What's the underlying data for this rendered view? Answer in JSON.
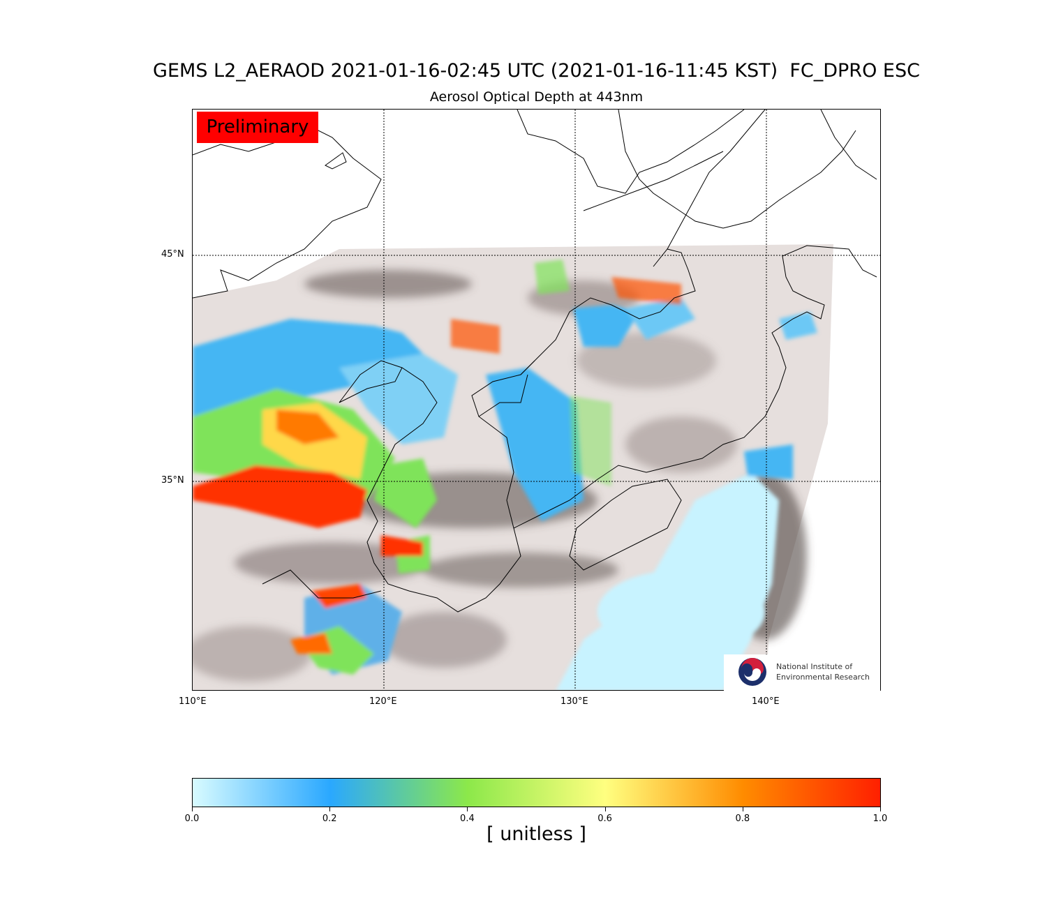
{
  "title": "GEMS L2_AERAOD 2021-01-16-02:45 UTC (2021-01-16-11:45 KST)  FC_DPRO ESC",
  "subtitle": "Aerosol Optical Depth at 443nm",
  "badge": "Preliminary",
  "map": {
    "lon_range": [
      110,
      146
    ],
    "lat_range": [
      25.7,
      51.4
    ],
    "lat_labels": [
      "45°N",
      "35°N"
    ],
    "lon_labels": [
      "110°E",
      "120°E",
      "130°E",
      "140°E"
    ],
    "gridlines": "dotted",
    "colors": {
      "clouds": "#e8e2e0",
      "cloud_shadow": "#5a4e4c",
      "low_aod": "#c8f3ff",
      "mid_aod": "#30b0ff",
      "green": "#7fe35a",
      "yellow": "#ffe070",
      "high_aod": "#ff2a00"
    }
  },
  "logo": {
    "line1": "National Institute of",
    "line2": "Environmental Research"
  },
  "colorbar": {
    "ticks": [
      "0.0",
      "0.2",
      "0.4",
      "0.6",
      "0.8",
      "1.0"
    ],
    "range": [
      0,
      1
    ],
    "colors": [
      "#d8fbff",
      "#2aa8ff",
      "#8ce84a",
      "#ffff80",
      "#ff8c00",
      "#ff2000"
    ],
    "unit": "[ unitless ]"
  }
}
